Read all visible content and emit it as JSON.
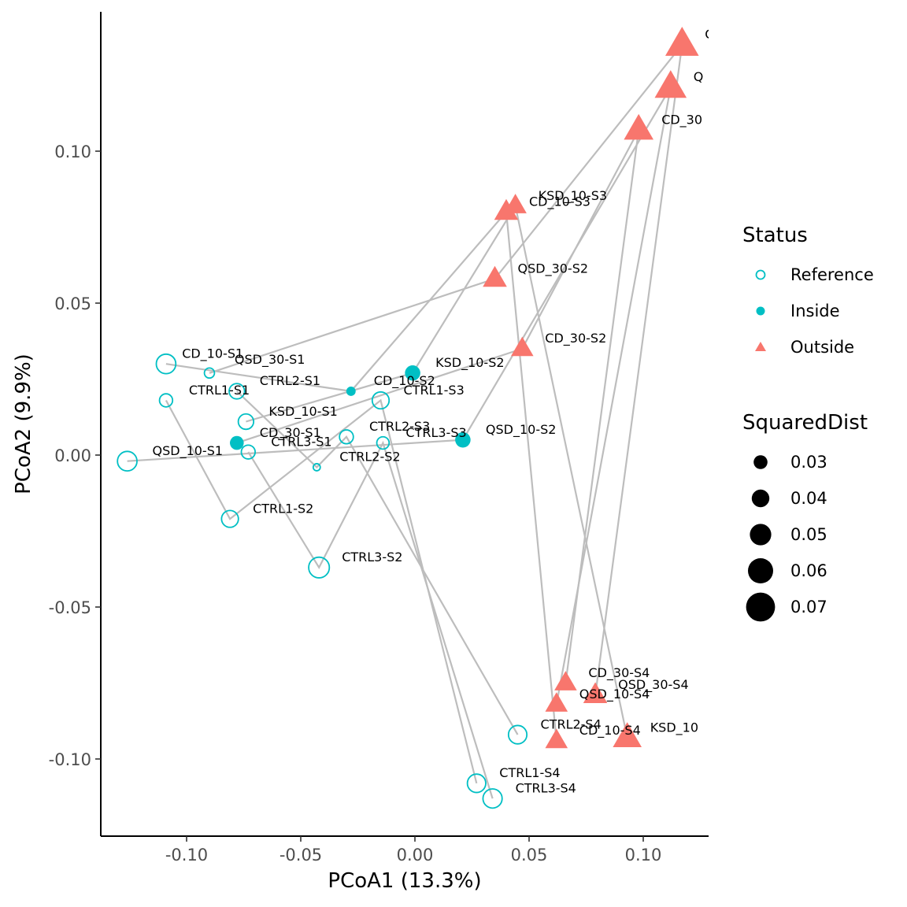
{
  "chart_data": {
    "type": "scatter",
    "xlabel": "PCoA1 (13.3%)",
    "ylabel": "PCoA2 (9.9%)",
    "xlim": [
      -0.138,
      0.128
    ],
    "ylim": [
      -0.12,
      0.145
    ],
    "x_ticks": [
      {
        "value": -0.1,
        "label": "-0.10"
      },
      {
        "value": -0.05,
        "label": "-0.05"
      },
      {
        "value": 0.0,
        "label": "0.00"
      },
      {
        "value": 0.05,
        "label": "0.05"
      },
      {
        "value": 0.1,
        "label": "0.10"
      }
    ],
    "y_ticks": [
      {
        "value": 0.1,
        "label": "0.10"
      },
      {
        "value": 0.05,
        "label": "0.05"
      },
      {
        "value": 0.0,
        "label": "0.00"
      },
      {
        "value": -0.05,
        "label": "-0.05"
      },
      {
        "value": -0.1,
        "label": "-0.10"
      }
    ],
    "status_colors": {
      "Reference": "#00BFC4",
      "Inside": "#00BFC4",
      "Outside": "#F8766D"
    },
    "line_color": "#bdbdbd",
    "points": [
      {
        "id": "CD_10-S1",
        "x": -0.109,
        "y": 0.03,
        "status": "Reference",
        "sqdist": 0.045
      },
      {
        "id": "CD_10-S2",
        "x": -0.028,
        "y": 0.021,
        "status": "Inside",
        "sqdist": 0.018
      },
      {
        "id": "CD_10-S3",
        "x": 0.04,
        "y": 0.08,
        "status": "Outside",
        "sqdist": 0.054
      },
      {
        "id": "CD_10-S4",
        "x": 0.062,
        "y": -0.094,
        "status": "Outside",
        "sqdist": 0.05
      },
      {
        "id": "CD_30-S1",
        "x": -0.078,
        "y": 0.004,
        "status": "Inside",
        "sqdist": 0.03
      },
      {
        "id": "CD_30-S2",
        "x": 0.047,
        "y": 0.035,
        "status": "Outside",
        "sqdist": 0.05
      },
      {
        "id": "CD_30-S3",
        "x": 0.098,
        "y": 0.107,
        "status": "Outside",
        "sqdist": 0.068
      },
      {
        "id": "CD_30-S4",
        "x": 0.066,
        "y": -0.075,
        "status": "Outside",
        "sqdist": 0.05
      },
      {
        "id": "CD_30-S5",
        "x": 0.117,
        "y": 0.135,
        "status": "Outside",
        "sqdist": 0.078
      },
      {
        "id": "KSD_10-S1",
        "x": -0.074,
        "y": 0.011,
        "status": "Reference",
        "sqdist": 0.034
      },
      {
        "id": "KSD_10-S2",
        "x": -0.001,
        "y": 0.027,
        "status": "Inside",
        "sqdist": 0.034
      },
      {
        "id": "KSD_10-S3",
        "x": 0.044,
        "y": 0.082,
        "status": "Outside",
        "sqdist": 0.05
      },
      {
        "id": "KSD_10-S4",
        "x": 0.093,
        "y": -0.093,
        "status": "Outside",
        "sqdist": 0.066
      },
      {
        "id": "QSD_10-S1",
        "x": -0.126,
        "y": -0.002,
        "status": "Reference",
        "sqdist": 0.045
      },
      {
        "id": "QSD_10-S2",
        "x": 0.021,
        "y": 0.005,
        "status": "Inside",
        "sqdist": 0.034
      },
      {
        "id": "QSD_10-S3",
        "x": 0.112,
        "y": 0.121,
        "status": "Outside",
        "sqdist": 0.074
      },
      {
        "id": "QSD_10-S4",
        "x": 0.062,
        "y": -0.082,
        "status": "Outside",
        "sqdist": 0.05
      },
      {
        "id": "QSD_30-S1",
        "x": -0.09,
        "y": 0.027,
        "status": "Reference",
        "sqdist": 0.02
      },
      {
        "id": "QSD_30-S2",
        "x": 0.035,
        "y": 0.058,
        "status": "Outside",
        "sqdist": 0.054
      },
      {
        "id": "QSD_30-S4",
        "x": 0.079,
        "y": -0.079,
        "status": "Outside",
        "sqdist": 0.054
      },
      {
        "id": "CTRL1-S1",
        "x": -0.109,
        "y": 0.018,
        "status": "Reference",
        "sqdist": 0.028
      },
      {
        "id": "CTRL1-S2",
        "x": -0.081,
        "y": -0.021,
        "status": "Reference",
        "sqdist": 0.038
      },
      {
        "id": "CTRL1-S3",
        "x": -0.015,
        "y": 0.018,
        "status": "Reference",
        "sqdist": 0.038
      },
      {
        "id": "CTRL1-S4",
        "x": 0.027,
        "y": -0.108,
        "status": "Reference",
        "sqdist": 0.042
      },
      {
        "id": "CTRL2-S1",
        "x": -0.078,
        "y": 0.021,
        "status": "Reference",
        "sqdist": 0.034
      },
      {
        "id": "CTRL2-S2",
        "x": -0.043,
        "y": -0.004,
        "status": "Reference",
        "sqdist": 0.012
      },
      {
        "id": "CTRL2-S3",
        "x": -0.03,
        "y": 0.006,
        "status": "Reference",
        "sqdist": 0.03
      },
      {
        "id": "CTRL2-S4",
        "x": 0.045,
        "y": -0.092,
        "status": "Reference",
        "sqdist": 0.042
      },
      {
        "id": "CTRL3-S1",
        "x": -0.073,
        "y": 0.001,
        "status": "Reference",
        "sqdist": 0.03
      },
      {
        "id": "CTRL3-S2",
        "x": -0.042,
        "y": -0.037,
        "status": "Reference",
        "sqdist": 0.048
      },
      {
        "id": "CTRL3-S3",
        "x": -0.014,
        "y": 0.004,
        "status": "Reference",
        "sqdist": 0.026
      },
      {
        "id": "CTRL3-S4",
        "x": 0.034,
        "y": -0.113,
        "status": "Reference",
        "sqdist": 0.044
      }
    ],
    "labels": [
      {
        "text": "CD_10-S1",
        "x": -0.102,
        "y": 0.032
      },
      {
        "text": "QSD_30-S1",
        "x": -0.079,
        "y": 0.03
      },
      {
        "text": "CTRL2-S1",
        "x": -0.068,
        "y": 0.023
      },
      {
        "text": "CTRL1-S1",
        "x": -0.099,
        "y": 0.02
      },
      {
        "text": "CD_10-S2",
        "x": -0.018,
        "y": 0.023
      },
      {
        "text": "CTRL1-S3",
        "x": -0.005,
        "y": 0.02
      },
      {
        "text": "KSD_10-S2",
        "x": 0.009,
        "y": 0.029
      },
      {
        "text": "KSD_10-S1",
        "x": -0.064,
        "y": 0.013
      },
      {
        "text": "CD_30-S1",
        "x": -0.068,
        "y": 0.006
      },
      {
        "text": "CTRL3-S1",
        "x": -0.063,
        "y": 0.003
      },
      {
        "text": "QSD_10-S1",
        "x": -0.115,
        "y": 0.0
      },
      {
        "text": "CTRL2-S3",
        "x": -0.02,
        "y": 0.008
      },
      {
        "text": "CTRL3-S3",
        "x": -0.004,
        "y": 0.006
      },
      {
        "text": "QSD_10-S2",
        "x": 0.031,
        "y": 0.007
      },
      {
        "text": "CTRL2-S2",
        "x": -0.033,
        "y": -0.002
      },
      {
        "text": "CTRL1-S2",
        "x": -0.071,
        "y": -0.019
      },
      {
        "text": "CTRL3-S2",
        "x": -0.032,
        "y": -0.035
      },
      {
        "text": "KSD_10-S3",
        "x": 0.054,
        "y": 0.084
      },
      {
        "text": "CD_10-S3",
        "x": 0.05,
        "y": 0.082
      },
      {
        "text": "QSD_30-S2",
        "x": 0.045,
        "y": 0.06
      },
      {
        "text": "CD_30-S2",
        "x": 0.057,
        "y": 0.037
      },
      {
        "text": "CD_30",
        "x": 0.108,
        "y": 0.109
      },
      {
        "text": "Q",
        "x": 0.122,
        "y": 0.123
      },
      {
        "text": "C",
        "x": 0.127,
        "y": 0.137
      },
      {
        "text": "CD_30-S4",
        "x": 0.076,
        "y": -0.073
      },
      {
        "text": "QSD_30-S4",
        "x": 0.089,
        "y": -0.077
      },
      {
        "text": "QSD_10-S4",
        "x": 0.072,
        "y": -0.08
      },
      {
        "text": "CTRL2-S4",
        "x": 0.055,
        "y": -0.09
      },
      {
        "text": "CD_10-S4",
        "x": 0.072,
        "y": -0.092
      },
      {
        "text": "KSD_10",
        "x": 0.103,
        "y": -0.091
      },
      {
        "text": "CTRL1-S4",
        "x": 0.037,
        "y": -0.106
      },
      {
        "text": "CTRL3-S4",
        "x": 0.044,
        "y": -0.111
      }
    ],
    "trajectories": [
      [
        "CD_10-S1",
        "CD_10-S2",
        "CD_10-S3",
        "CD_10-S4"
      ],
      [
        "CD_30-S1",
        "CD_30-S2",
        "CD_30-S3",
        "CD_30-S4"
      ],
      [
        "QSD_10-S1",
        "QSD_10-S2",
        "QSD_10-S3",
        "QSD_10-S4"
      ],
      [
        "QSD_30-S1",
        "QSD_30-S2",
        "CD_30-S5",
        "QSD_30-S4"
      ],
      [
        "KSD_10-S1",
        "KSD_10-S2",
        "KSD_10-S3",
        "KSD_10-S4"
      ],
      [
        "CTRL1-S1",
        "CTRL1-S2",
        "CTRL1-S3",
        "CTRL1-S4"
      ],
      [
        "CTRL2-S1",
        "CTRL2-S2",
        "CTRL2-S3",
        "CTRL2-S4"
      ],
      [
        "CTRL3-S1",
        "CTRL3-S2",
        "CTRL3-S3",
        "CTRL3-S4"
      ]
    ],
    "legend": {
      "status_title": "Status",
      "status_items": [
        {
          "label": "Reference",
          "shape": "open-circle"
        },
        {
          "label": "Inside",
          "shape": "filled-circle"
        },
        {
          "label": "Outside",
          "shape": "triangle"
        }
      ],
      "size_title": "SquaredDist",
      "size_items": [
        {
          "label": "0.03",
          "value": 0.03
        },
        {
          "label": "0.04",
          "value": 0.04
        },
        {
          "label": "0.05",
          "value": 0.05
        },
        {
          "label": "0.06",
          "value": 0.06
        },
        {
          "label": "0.07",
          "value": 0.07
        }
      ],
      "placement": "right"
    }
  }
}
